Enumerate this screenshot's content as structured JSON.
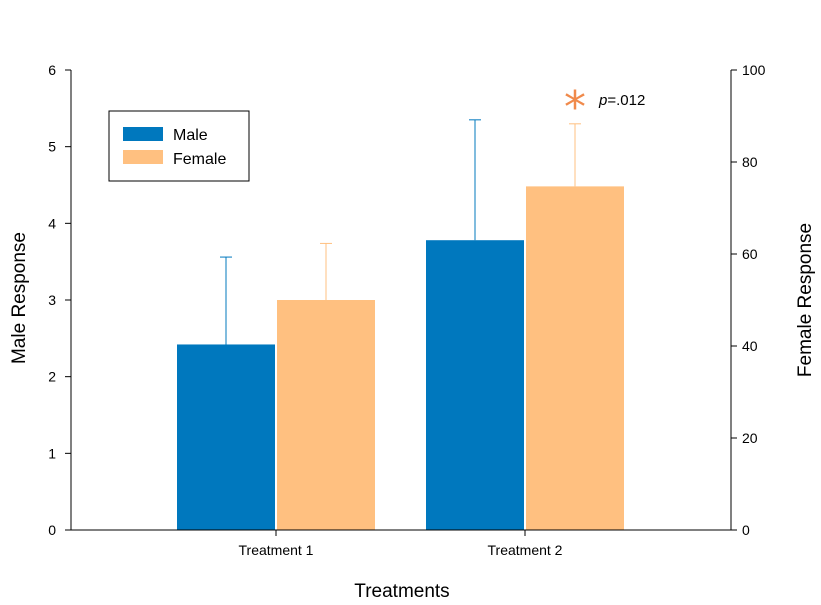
{
  "colors": {
    "male": "#0078be",
    "female": "#ffc080",
    "star": "#f08a4b",
    "axis": "#000000"
  },
  "chart_data": {
    "type": "bar",
    "categories": [
      "Treatment 1",
      "Treatment 2"
    ],
    "xlabel": "Treatments",
    "series": [
      {
        "name": "Male",
        "axis": "left",
        "values": [
          2.42,
          3.78
        ],
        "error_upper": [
          1.14,
          1.57
        ]
      },
      {
        "name": "Female",
        "axis": "right",
        "values": [
          50,
          74.7
        ],
        "error_upper": [
          12.3,
          13.6
        ]
      }
    ],
    "y_left": {
      "label": "Male Response",
      "lim": [
        0,
        6
      ],
      "ticks": [
        "0",
        "1",
        "2",
        "3",
        "4",
        "5",
        "6"
      ]
    },
    "y_right": {
      "label": "Female Response",
      "lim": [
        0,
        100
      ],
      "ticks": [
        "0",
        "20",
        "40",
        "60",
        "80",
        "100"
      ]
    },
    "legend": {
      "position": "top-left",
      "items": [
        "Male",
        "Female"
      ]
    },
    "annotation": {
      "symbol": "*",
      "text_prefix": "p",
      "text_value": "=.012",
      "category": "Treatment 2",
      "series": "Female"
    },
    "grid": false
  }
}
